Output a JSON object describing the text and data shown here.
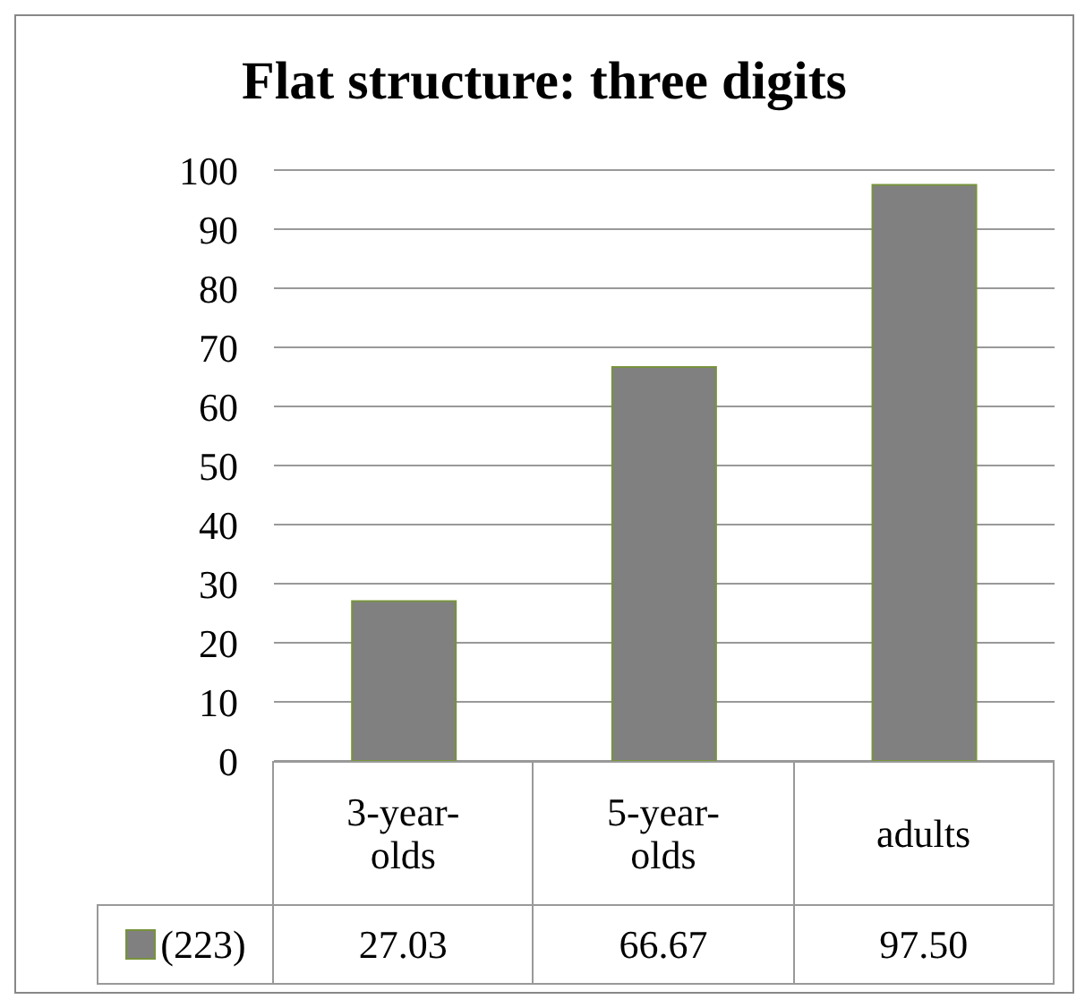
{
  "chart_data": {
    "type": "bar",
    "title": "Flat structure: three digits",
    "categories": [
      "3-year-olds",
      "5-year-olds",
      "adults"
    ],
    "series": [
      {
        "name": "(223)",
        "color": "#808080",
        "values": [
          27.03,
          66.67,
          97.5
        ],
        "value_labels": [
          "27.03",
          "66.67",
          "97.50"
        ]
      }
    ],
    "ylim": [
      0,
      100
    ],
    "yticks": [
      0,
      10,
      20,
      30,
      40,
      50,
      60,
      70,
      80,
      90,
      100
    ],
    "grid": "y",
    "legend": "bottom"
  }
}
